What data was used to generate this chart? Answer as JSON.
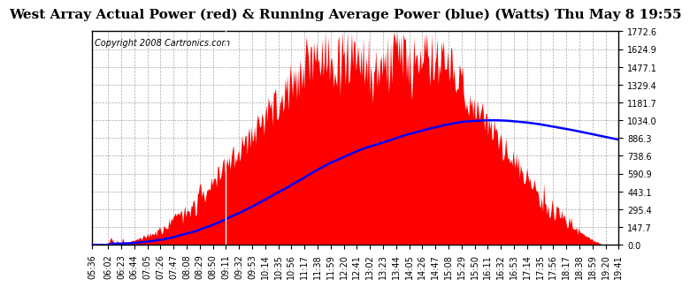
{
  "title": "West Array Actual Power (red) & Running Average Power (blue) (Watts) Thu May 8 19:55",
  "copyright": "Copyright 2008 Cartronics.com",
  "bg_color": "#ffffff",
  "plot_bg_color": "#ffffff",
  "y_max": 1772.6,
  "y_min": 0.0,
  "y_ticks": [
    0.0,
    147.7,
    295.4,
    443.1,
    590.9,
    738.6,
    886.3,
    1034.0,
    1181.7,
    1329.4,
    1477.1,
    1624.9,
    1772.6
  ],
  "x_labels": [
    "05:36",
    "06:02",
    "06:23",
    "06:44",
    "07:05",
    "07:26",
    "07:47",
    "08:08",
    "08:29",
    "08:50",
    "09:11",
    "09:32",
    "09:53",
    "10:14",
    "10:35",
    "10:56",
    "11:17",
    "11:38",
    "11:59",
    "12:20",
    "12:41",
    "13:02",
    "13:23",
    "13:44",
    "14:05",
    "14:26",
    "14:47",
    "15:08",
    "15:29",
    "15:50",
    "16:11",
    "16:32",
    "16:53",
    "17:14",
    "17:35",
    "17:56",
    "18:17",
    "18:38",
    "18:59",
    "19:20",
    "19:41"
  ],
  "title_fontsize": 11,
  "copyright_fontsize": 7,
  "axis_label_fontsize": 7,
  "line_color_actual": "#ff0000",
  "line_color_avg": "#0000ff",
  "grid_color": "#aaaaaa",
  "white_vline_x": "09:11"
}
